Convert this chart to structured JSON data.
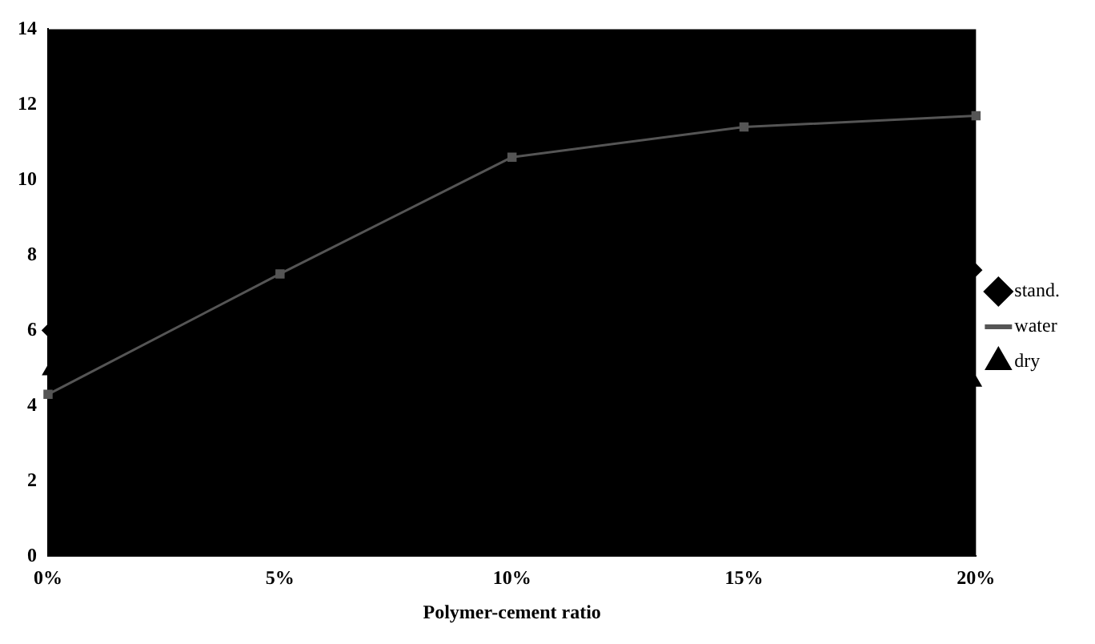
{
  "chart_data": {
    "type": "line",
    "xlabel": "Polymer-cement ratio",
    "categories": [
      "0%",
      "5%",
      "10%",
      "15%",
      "20%"
    ],
    "series": [
      {
        "name": "stand.",
        "type": "scatter",
        "color": "#000000",
        "marker": "diamond",
        "values": [
          6.0,
          null,
          null,
          null,
          7.6
        ]
      },
      {
        "name": "water",
        "color": "#555555",
        "marker": "square",
        "values": [
          4.3,
          7.5,
          10.6,
          11.4,
          11.7
        ]
      },
      {
        "name": "dry",
        "type": "scatter",
        "color": "#000000",
        "marker": "triangle",
        "values": [
          4.9,
          null,
          null,
          null,
          4.6
        ]
      }
    ],
    "ylim": [
      0,
      14
    ],
    "yticks": [
      0,
      2,
      4,
      6,
      8,
      10,
      12,
      14
    ],
    "grid": false,
    "legend": "right",
    "line_style": "solid"
  }
}
